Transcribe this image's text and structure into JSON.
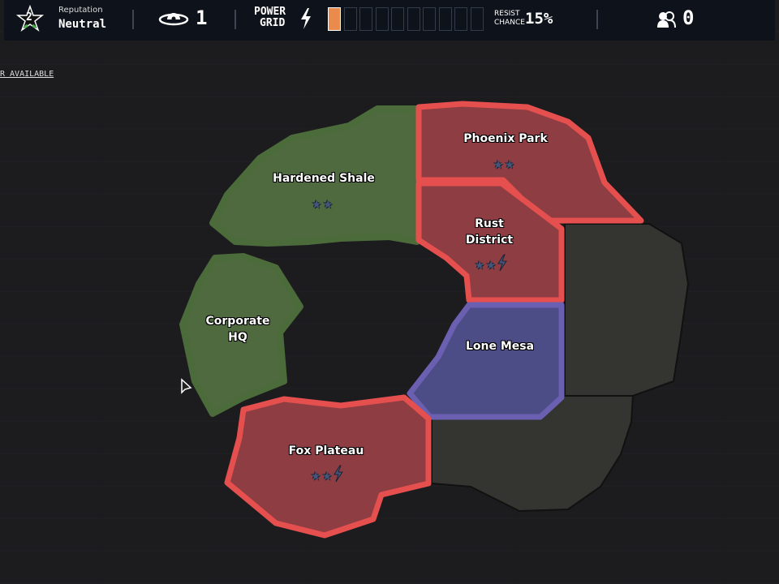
{
  "topbar": {
    "reputation": {
      "level": "2",
      "label": "Reputation",
      "value": "Neutral",
      "icon": "star-icon"
    },
    "watchers": {
      "icon": "eye-icon",
      "value": "1"
    },
    "power_grid": {
      "label_line1": "POWER",
      "label_line2": "GRID",
      "icon": "lightning-icon",
      "filled": 1,
      "total": 10,
      "fill_color": "#ea8a4c"
    },
    "resist": {
      "label_line1": "RESIST",
      "label_line2": "CHANCE",
      "value": "15%"
    },
    "people": {
      "icon": "people-icon",
      "value": "0"
    }
  },
  "side_link": "R AVAILABLE",
  "regions": [
    {
      "name": "Hardened Shale",
      "owner_color": "#4e6a3e",
      "stars": "★★",
      "power": false
    },
    {
      "name": "Phoenix Park",
      "owner_color": "#8e3d43",
      "stars": "★★",
      "power": false
    },
    {
      "name": "Rust\nDistrict",
      "owner_color": "#8e3d43",
      "stars": "★★",
      "power": true
    },
    {
      "name": "Corporate\nHQ",
      "owner_color": "#4e6a3e",
      "stars": "",
      "power": false
    },
    {
      "name": "Lone Mesa",
      "owner_color": "#4c4c86",
      "stars": "",
      "power": false
    },
    {
      "name": "Fox Plateau",
      "owner_color": "#8e3d43",
      "stars": "★★",
      "power": true
    }
  ],
  "colors": {
    "red_border": "#e5504f",
    "green_border": "#4b6b3a",
    "blue_border": "#6a5fb0",
    "neutral": "#343431"
  }
}
